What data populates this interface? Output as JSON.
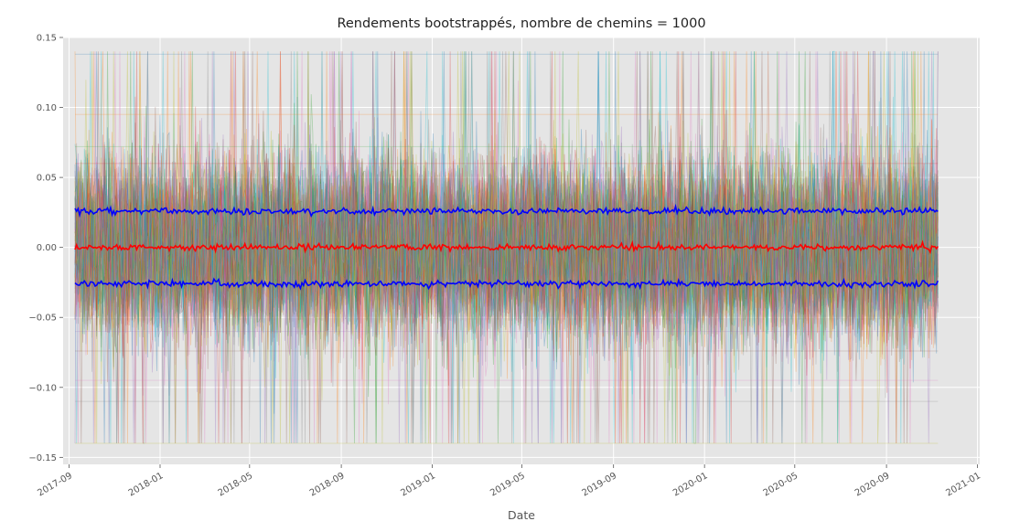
{
  "chart_data": {
    "type": "line",
    "title": "Rendements bootstrappés, nombre de chemins = 1000",
    "xlabel": "Date",
    "ylabel": "",
    "x_start": "2017-09-09",
    "x_end": "2020-11-09",
    "xlim": [
      "2017-08-24",
      "2021-01-04"
    ],
    "ylim": [
      -0.155,
      0.15
    ],
    "x_tick_labels": [
      "2017-09",
      "2018-01",
      "2018-05",
      "2018-09",
      "2019-01",
      "2019-05",
      "2019-09",
      "2020-01",
      "2020-05",
      "2020-09",
      "2021-01"
    ],
    "x_tick_dates": [
      "2017-09-01",
      "2018-01-01",
      "2018-05-01",
      "2018-09-01",
      "2019-01-01",
      "2019-05-01",
      "2019-09-01",
      "2020-01-01",
      "2020-05-01",
      "2020-09-01",
      "2021-01-01"
    ],
    "y_tick_labels": [
      "0.15",
      "0.10",
      "0.05",
      "0.00",
      "−0.05",
      "−0.10",
      "−0.15"
    ],
    "y_tick_values": [
      0.15,
      0.1,
      0.05,
      0.0,
      -0.05,
      -0.1,
      -0.15
    ],
    "grid": true,
    "background": "#e5e5e5",
    "summary_series": [
      {
        "name": "",
        "color": "#0000ff",
        "mean_value": 0.026
      },
      {
        "name": "",
        "color": "#ff0000",
        "mean_value": 0.0
      },
      {
        "name": "",
        "color": "#0000ff",
        "mean_value": -0.026
      }
    ],
    "bootstrap_paths": {
      "count": 1000,
      "value_range": [
        -0.14,
        0.14
      ],
      "colors": [
        "#1f77b4",
        "#ff7f0e",
        "#2ca02c",
        "#d62728",
        "#9467bd",
        "#8c564b",
        "#e377c2",
        "#7f7f7f",
        "#bcbd22",
        "#17becf"
      ]
    }
  }
}
